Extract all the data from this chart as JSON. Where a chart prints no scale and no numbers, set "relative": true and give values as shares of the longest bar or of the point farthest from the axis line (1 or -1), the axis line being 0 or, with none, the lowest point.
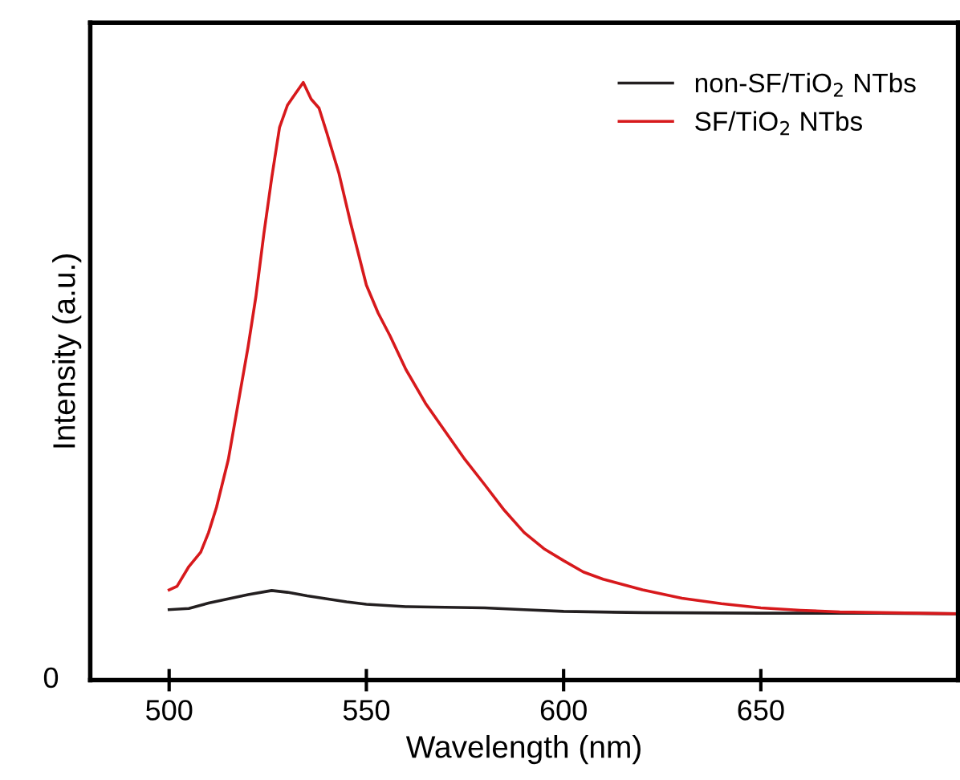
{
  "chart_data": {
    "type": "line",
    "relative": true,
    "xlabel": "Wavelength (nm)",
    "ylabel": "Intensity (a.u.)",
    "xlim": [
      480,
      700
    ],
    "xticks": [
      500,
      550,
      600,
      650
    ],
    "annotations": [
      "0"
    ],
    "legend": "top right",
    "grid": false,
    "marker": "none",
    "line_style": "solid",
    "series": [
      {
        "name": "non-SF/TiO$_{2}$ NTbs",
        "color": "#231f20",
        "x": [
          500,
          505,
          510,
          515,
          520,
          526,
          530,
          535,
          540,
          545,
          550,
          560,
          570,
          580,
          590,
          600,
          620,
          650,
          680,
          700
        ],
        "values": [
          0.118,
          0.12,
          0.129,
          0.136,
          0.143,
          0.15,
          0.147,
          0.141,
          0.136,
          0.131,
          0.127,
          0.123,
          0.122,
          0.121,
          0.118,
          0.115,
          0.113,
          0.112,
          0.112,
          0.111
        ]
      },
      {
        "name": "SF/TiO$_{2}$ NTbs",
        "color": "#d7191c",
        "x": [
          500,
          502,
          505,
          508,
          510,
          512,
          515,
          518,
          520,
          522,
          524,
          526,
          528,
          530,
          532,
          534,
          536,
          538,
          540,
          543,
          546,
          550,
          553,
          556,
          560,
          565,
          570,
          575,
          580,
          585,
          590,
          595,
          600,
          605,
          610,
          620,
          630,
          640,
          650,
          660,
          670,
          680,
          690,
          700
        ],
        "values": [
          0.151,
          0.157,
          0.19,
          0.214,
          0.247,
          0.289,
          0.369,
          0.482,
          0.557,
          0.642,
          0.746,
          0.84,
          0.925,
          0.962,
          0.981,
          1.0,
          0.972,
          0.957,
          0.915,
          0.849,
          0.765,
          0.661,
          0.614,
          0.576,
          0.52,
          0.463,
          0.416,
          0.369,
          0.327,
          0.284,
          0.247,
          0.22,
          0.2,
          0.181,
          0.169,
          0.151,
          0.137,
          0.128,
          0.121,
          0.117,
          0.114,
          0.113,
          0.112,
          0.111
        ]
      }
    ]
  }
}
